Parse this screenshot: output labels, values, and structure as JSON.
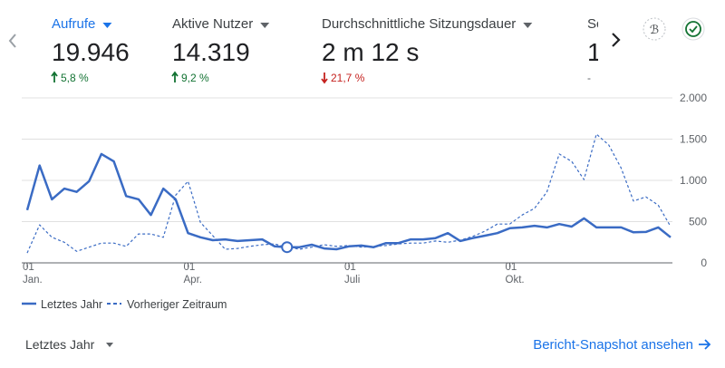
{
  "metrics": [
    {
      "name": "Aufrufe",
      "value": "19.946",
      "change": "5,8 %",
      "direction": "up",
      "selected": true
    },
    {
      "name": "Aktive Nutzer",
      "value": "14.319",
      "change": "9,2 %",
      "direction": "up"
    },
    {
      "name": "Durchschnittliche Sitzungsdauer",
      "value": "2 m 12 s",
      "change": "21,7 %",
      "direction": "down"
    },
    {
      "name": "Sc",
      "value": "1",
      "change": "-"
    }
  ],
  "chart_data": {
    "type": "line",
    "categories": [
      "01 Jan.",
      null,
      null,
      null,
      null,
      null,
      null,
      null,
      null,
      null,
      null,
      null,
      null,
      "01 Apr.",
      null,
      null,
      null,
      null,
      null,
      null,
      null,
      null,
      null,
      null,
      null,
      null,
      "01 Juli",
      null,
      null,
      null,
      null,
      null,
      null,
      null,
      null,
      null,
      null,
      null,
      null,
      "01 Okt.",
      null,
      null,
      null,
      null,
      null,
      null,
      null,
      null,
      null,
      null,
      null,
      null,
      null
    ],
    "series": [
      {
        "name": "Letztes Jahr",
        "color": "#3a6bc4",
        "dash": false,
        "values": [
          640,
          1180,
          770,
          900,
          860,
          990,
          1320,
          1230,
          810,
          770,
          580,
          900,
          770,
          360,
          310,
          275,
          285,
          265,
          275,
          285,
          200,
          190,
          190,
          220,
          175,
          165,
          200,
          210,
          190,
          240,
          240,
          285,
          285,
          300,
          360,
          265,
          300,
          330,
          360,
          420,
          430,
          450,
          430,
          470,
          440,
          540,
          430,
          430,
          430,
          370,
          375,
          430,
          310
        ]
      },
      {
        "name": "Vorheriger Zeitraum",
        "color": "#3a6bc4",
        "dash": true,
        "values": [
          120,
          460,
          310,
          250,
          140,
          190,
          240,
          240,
          200,
          350,
          350,
          310,
          820,
          990,
          490,
          330,
          165,
          175,
          200,
          220,
          230,
          190,
          165,
          190,
          220,
          200,
          210,
          190,
          200,
          210,
          230,
          240,
          240,
          265,
          250,
          275,
          320,
          385,
          470,
          470,
          580,
          660,
          860,
          1320,
          1230,
          1010,
          1560,
          1430,
          1150,
          750,
          800,
          700,
          440
        ]
      }
    ],
    "highlight_index": 21,
    "ylim": [
      0,
      2000
    ],
    "yticks": [
      0,
      500,
      {
        "value": 1000,
        "label": "1.000"
      },
      {
        "value": 1500,
        "label": "1.500"
      },
      {
        "value": 2000,
        "label": "2.000"
      }
    ],
    "grid": true
  },
  "footer": {
    "period": "Letztes Jahr",
    "link": "Bericht-Snapshot ansehen"
  }
}
